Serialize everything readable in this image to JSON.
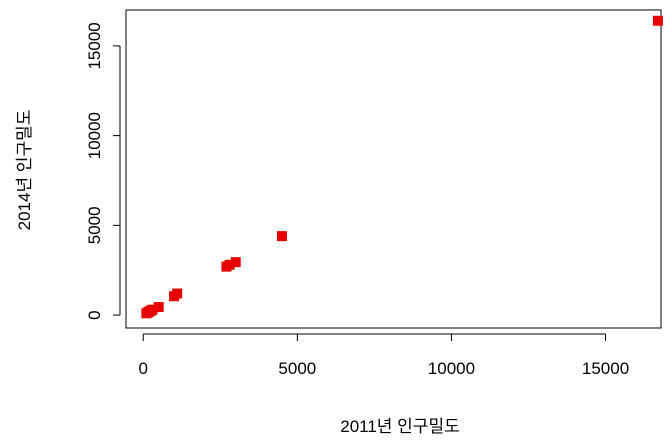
{
  "chart_data": {
    "type": "scatter",
    "x_label": "2011년 인구밀도",
    "y_label": "2014년 인구밀도",
    "color": "#e60000",
    "x": [
      100,
      150,
      200,
      250,
      300,
      500,
      1000,
      1100,
      2700,
      2800,
      3000,
      4500,
      16700
    ],
    "values": [
      100,
      150,
      200,
      250,
      300,
      450,
      1050,
      1200,
      2700,
      2800,
      2950,
      4400,
      16400
    ],
    "xlim": [
      -560,
      16800
    ],
    "ylim": [
      -720,
      17000
    ],
    "xticks": [
      0,
      5000,
      10000,
      15000
    ],
    "yticks": [
      0,
      5000,
      10000,
      15000
    ]
  }
}
